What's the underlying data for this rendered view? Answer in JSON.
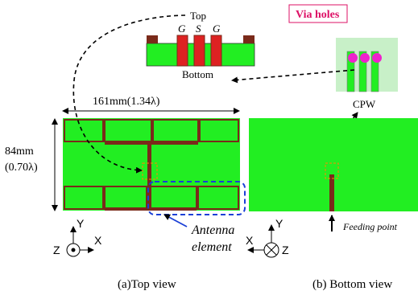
{
  "labels": {
    "top": "Top",
    "bottom": "Bottom",
    "g_left": "G",
    "s_mid": "S",
    "g_right": "G",
    "via_holes": "Via holes",
    "cpw": "CPW",
    "width_dim": "161mm(1.34λ)",
    "height_dim_mm": "84mm",
    "height_dim_lambda": "(0.70λ)",
    "antenna_element_1": "Antenna",
    "antenna_element_2": "element",
    "feeding_point": "Feeding point",
    "caption_top": "(a)Top view",
    "caption_bottom": "(b) Bottom view",
    "axis_y": "Y",
    "axis_x": "X",
    "axis_z": "Z"
  },
  "colors": {
    "board": "#22ee22",
    "patch": "#22ee22",
    "patch_border": "#7a2a1a",
    "signal": "#dd2222",
    "via": "#ee22cc",
    "via_label": "#dd1166",
    "highlight_dash": "#1a3fd6",
    "detail_dash": "#ff8800"
  }
}
